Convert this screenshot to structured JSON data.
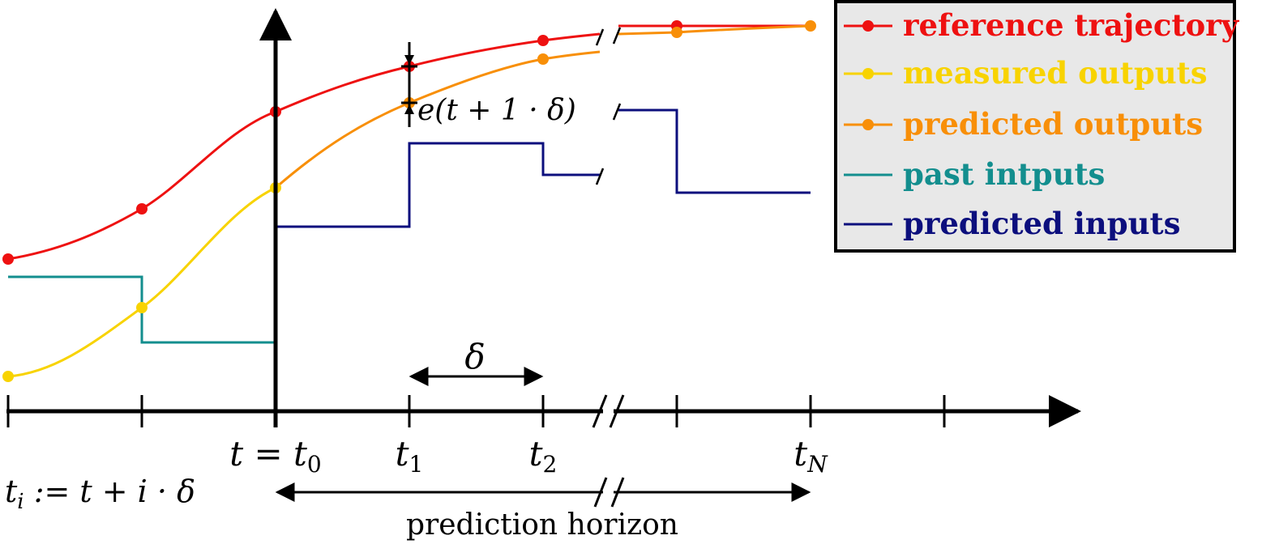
{
  "colors": {
    "reference": "#ee1111",
    "measured": "#f8d300",
    "predicted_outputs": "#f88f08",
    "past_inputs": "#138e8e",
    "predicted_inputs": "#0c0f7d",
    "axis": "#000000",
    "legend_bg": "#e8e8e8"
  },
  "legend": {
    "items": [
      {
        "label": "reference trajectory",
        "color": "#ee1111",
        "marker": true
      },
      {
        "label": "measured outputs",
        "color": "#f8d300",
        "marker": true
      },
      {
        "label": "predicted outputs",
        "color": "#f88f08",
        "marker": true
      },
      {
        "label": "past intputs",
        "color": "#138e8e",
        "marker": false
      },
      {
        "label": "predicted inputs",
        "color": "#0c0f7d",
        "marker": false
      }
    ]
  },
  "axis": {
    "t0": {
      "lhs": "t",
      "eq": " = ",
      "rhs": "t",
      "sub": "0"
    },
    "t1": {
      "main": "t",
      "sub": "1"
    },
    "t2": {
      "main": "t",
      "sub": "2"
    },
    "tN": {
      "main": "t",
      "sub": "N"
    }
  },
  "annotations": {
    "delta": "δ",
    "error": "e(t + 1 · δ)",
    "definition": {
      "lhs": "t",
      "sub": "i",
      "rhs": " := t + i · δ"
    },
    "prediction_horizon": "prediction horizon"
  }
}
